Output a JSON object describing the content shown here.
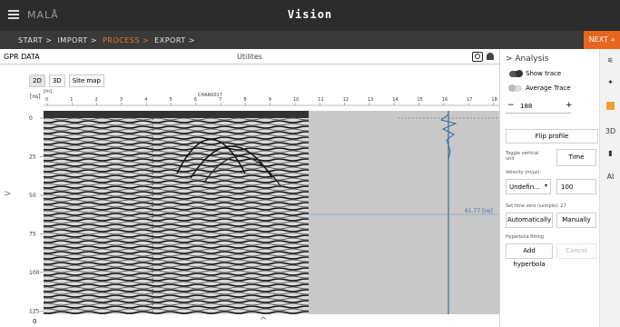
{
  "app": {
    "logo": "MALÅ",
    "title": "Vision"
  },
  "breadcrumbs": [
    {
      "label": "START >"
    },
    {
      "label": "IMPORT >"
    },
    {
      "label": "PROCESS >"
    },
    {
      "label": "EXPORT >"
    }
  ],
  "next_label": "NEXT »",
  "panel": {
    "left_label": "GPR DATA",
    "title": "Utilites"
  },
  "view_tabs": [
    "2D",
    "3D",
    "Site map"
  ],
  "plot": {
    "units_ns": "[ns]",
    "units_m": "[m]",
    "file_name": "CHAR0017",
    "x_ticks": [
      "0",
      "1",
      "2",
      "3",
      "4",
      "5",
      "6",
      "7",
      "8",
      "9",
      "10",
      "11",
      "12",
      "13",
      "14",
      "15",
      "16",
      "17",
      "18"
    ],
    "y_ticks": [
      "0",
      "25",
      "50",
      "75",
      "100",
      "125"
    ],
    "readout": "61.77 [ns]"
  },
  "bottom": {
    "left_text": "0"
  },
  "analysis": {
    "header": "> Analysis",
    "show_trace": "Show trace",
    "average_trace": "Average Trace",
    "trace_value": "188",
    "flip_profile": "Flip profile",
    "toggle_vertical_unit": "Toggle vertical unit",
    "time_btn": "Time",
    "velocity_label": "Velocity (m/µs):",
    "velocity_select": "Undefin...",
    "velocity_value": "100",
    "set_time_zero": "Set time zero (sample): 27",
    "auto_btn": "Automatically",
    "manual_btn": "Manually",
    "hyperbola_label": "Hyperbola fitting",
    "add_hyperbola": "Add hyperbola",
    "cancel_btn": "Cancel"
  },
  "rail": {
    "three_d": "3D",
    "ai": "AI"
  },
  "colors": {
    "accent": "#e8651f",
    "dark_bar": "#2c2c2c",
    "crumb_bar": "#3a3a3a"
  }
}
